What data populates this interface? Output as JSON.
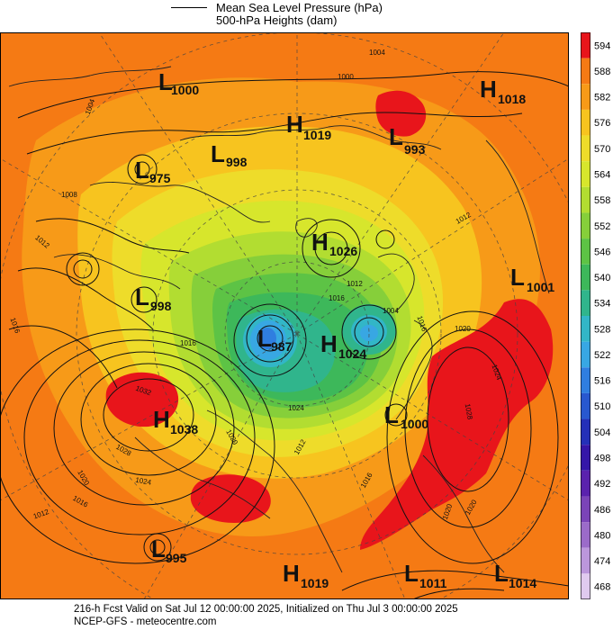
{
  "legend": {
    "line1": "Mean Sea Level Pressure (hPa)",
    "line2": "500-hPa Heights (dam)"
  },
  "footer": {
    "line1": "216-h Fcst Valid on Sat Jul 12 00:00:00 2025, Initialized on Thu Jul  3 00:00:00 2025",
    "line2": "NCEP-GFS  - meteocentre.com"
  },
  "colorbar": {
    "labels": [
      "594",
      "588",
      "582",
      "576",
      "570",
      "564",
      "558",
      "552",
      "546",
      "540",
      "534",
      "528",
      "522",
      "516",
      "510",
      "504",
      "498",
      "492",
      "486",
      "480",
      "474",
      "468"
    ],
    "colors": [
      "#e8151b",
      "#f57a14",
      "#f79a18",
      "#f7c41f",
      "#eedc2a",
      "#d7e62c",
      "#b2dd31",
      "#86cf3a",
      "#5dc345",
      "#3db85a",
      "#30b58c",
      "#32b6c7",
      "#38a7e3",
      "#2f7ee0",
      "#2858cf",
      "#2430b8",
      "#3516a8",
      "#5a22ad",
      "#7b44b8",
      "#9b6bc9",
      "#bc97dc",
      "#e0caef"
    ]
  },
  "systems": [
    {
      "type": "L",
      "value": "1000"
    },
    {
      "type": "H",
      "value": "1019"
    },
    {
      "type": "L",
      "value": "993"
    },
    {
      "type": "H",
      "value": "1018"
    },
    {
      "type": "L",
      "value": "998"
    },
    {
      "type": "L",
      "value": "975"
    },
    {
      "type": "H",
      "value": "1026"
    },
    {
      "type": "L",
      "value": "1001"
    },
    {
      "type": "L",
      "value": "998"
    },
    {
      "type": "L",
      "value": "987"
    },
    {
      "type": "H",
      "value": "1024"
    },
    {
      "type": "H",
      "value": "1038"
    },
    {
      "type": "L",
      "value": "1000"
    },
    {
      "type": "L",
      "value": "995"
    },
    {
      "type": "H",
      "value": "1019"
    },
    {
      "type": "L",
      "value": "1011"
    },
    {
      "type": "L",
      "value": "1014"
    }
  ],
  "isobar_labels": [
    "1004",
    "1000",
    "1004",
    "1008",
    "1012",
    "1016",
    "1012",
    "1012",
    "1016",
    "1020",
    "1024",
    "1028",
    "1032",
    "1028",
    "1024",
    "1020",
    "1016",
    "1012",
    "1020",
    "1024",
    "1016",
    "1012",
    "1020",
    "1016",
    "1020",
    "1016",
    "1004"
  ]
}
